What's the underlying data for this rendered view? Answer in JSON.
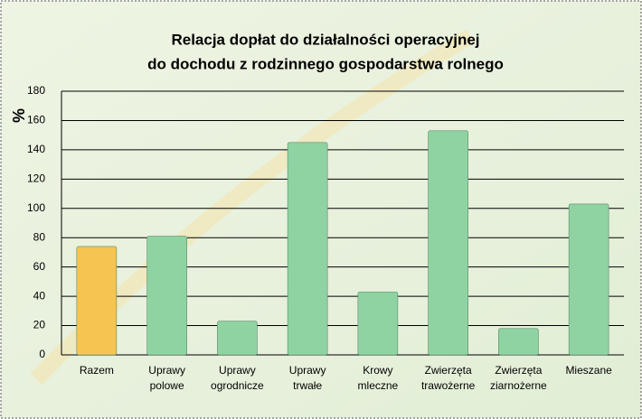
{
  "chart_data": {
    "type": "bar",
    "title": [
      "Relacja dopłat do działalności operacyjnej",
      "do dochodu z rodzinnego gospodarstwa rolnego"
    ],
    "y_label": "%",
    "categories": [
      [
        "Razem"
      ],
      [
        "Uprawy",
        "polowe"
      ],
      [
        "Uprawy",
        "ogrodnicze"
      ],
      [
        "Uprawy",
        "trwałe"
      ],
      [
        "Krowy",
        "mleczne"
      ],
      [
        "Zwierzęta",
        "trawożerne"
      ],
      [
        "Zwierzęta",
        "ziarnożerne"
      ],
      [
        "Mieszane"
      ]
    ],
    "values": [
      74,
      81,
      23,
      145,
      43,
      153,
      18,
      103
    ],
    "colors": [
      "#f5c451",
      "#8fd3a2",
      "#8fd3a2",
      "#8fd3a2",
      "#8fd3a2",
      "#8fd3a2",
      "#8fd3a2",
      "#8fd3a2"
    ],
    "ylim": [
      0,
      180
    ],
    "yticks": [
      0,
      20,
      40,
      60,
      80,
      100,
      120,
      140,
      160,
      180
    ],
    "grid": true
  }
}
